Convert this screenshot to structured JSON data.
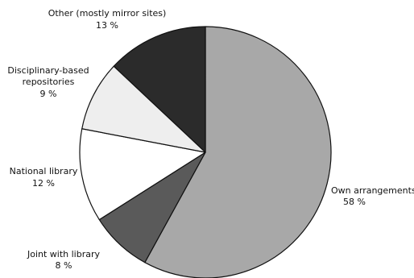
{
  "chart_data": {
    "type": "pie",
    "start_angle_deg": 0,
    "direction": "clockwise",
    "slices": [
      {
        "label": "Own arrangements",
        "value": 58,
        "value_text": "58 %",
        "color": "#a8a8a8"
      },
      {
        "label": "Joint with library",
        "value": 8,
        "value_text": "8 %",
        "color": "#5a5a5a"
      },
      {
        "label": "National library",
        "value": 12,
        "value_text": "12 %",
        "color": "#ffffff"
      },
      {
        "label_lines": [
          "Disciplinary-based",
          "repositories"
        ],
        "value": 9,
        "value_text": "9 %",
        "color": "#eeeeee"
      },
      {
        "label": "Other (mostly mirror sites)",
        "value": 13,
        "value_text": "13 %",
        "color": "#2b2b2b"
      }
    ],
    "stroke_color": "#111111"
  }
}
